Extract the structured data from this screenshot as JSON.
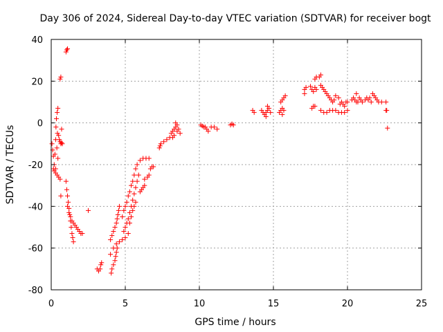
{
  "chart_data": {
    "type": "scatter",
    "title": "Day 306 of 2024, Sidereal Day-to-day VTEC variation (SDTVAR) for receiver bogt",
    "xlabel": "GPS time / hours",
    "ylabel": "SDTVAR / TECUs",
    "xlim": [
      0,
      25
    ],
    "ylim": [
      -80,
      40
    ],
    "x_ticks": [
      0,
      5,
      10,
      15,
      20,
      25
    ],
    "y_ticks": [
      -80,
      -60,
      -40,
      -20,
      0,
      20,
      40
    ],
    "x_tick_labels": [
      "0",
      "5",
      "10",
      "15",
      "20",
      "25"
    ],
    "y_tick_labels": [
      "-80",
      "-60",
      "-40",
      "-20",
      "0",
      "20",
      "40"
    ],
    "grid": true,
    "marker": "+",
    "marker_color": "#ff0000",
    "series": [
      {
        "name": "SDTVAR",
        "points": [
          [
            0.05,
            -10
          ],
          [
            0.1,
            -13
          ],
          [
            0.15,
            -16
          ],
          [
            0.2,
            -20
          ],
          [
            0.25,
            -15
          ],
          [
            0.3,
            -8
          ],
          [
            0.32,
            -2
          ],
          [
            0.35,
            2
          ],
          [
            0.4,
            5
          ],
          [
            0.45,
            7
          ],
          [
            0.42,
            -5
          ],
          [
            0.38,
            -12
          ],
          [
            0.45,
            -17
          ],
          [
            0.3,
            -22
          ],
          [
            0.15,
            -22
          ],
          [
            0.2,
            -23
          ],
          [
            0.3,
            -24
          ],
          [
            0.4,
            -25
          ],
          [
            0.5,
            -26
          ],
          [
            0.6,
            -27
          ],
          [
            0.5,
            -6
          ],
          [
            0.55,
            -8
          ],
          [
            0.6,
            -9
          ],
          [
            0.65,
            -10
          ],
          [
            0.7,
            -9.5
          ],
          [
            0.75,
            -10
          ],
          [
            0.6,
            21
          ],
          [
            0.65,
            22
          ],
          [
            1.0,
            34
          ],
          [
            1.05,
            35
          ],
          [
            1.1,
            35.5
          ],
          [
            0.7,
            -3
          ],
          [
            0.65,
            -35
          ],
          [
            1.0,
            -28
          ],
          [
            1.05,
            -32
          ],
          [
            1.1,
            -35
          ],
          [
            1.15,
            -38
          ],
          [
            1.2,
            -41
          ],
          [
            1.25,
            -44
          ],
          [
            1.3,
            -47
          ],
          [
            1.35,
            -50
          ],
          [
            1.4,
            -53
          ],
          [
            1.45,
            -55
          ],
          [
            1.5,
            -57
          ],
          [
            1.1,
            -40
          ],
          [
            1.2,
            -43
          ],
          [
            1.3,
            -45
          ],
          [
            1.4,
            -47
          ],
          [
            1.5,
            -48
          ],
          [
            1.6,
            -49
          ],
          [
            1.7,
            -50
          ],
          [
            1.8,
            -51
          ],
          [
            1.9,
            -52
          ],
          [
            2.0,
            -53
          ],
          [
            2.1,
            -53
          ],
          [
            2.5,
            -42
          ],
          [
            3.1,
            -70
          ],
          [
            3.2,
            -71
          ],
          [
            3.3,
            -70
          ],
          [
            3.35,
            -68
          ],
          [
            3.4,
            -67
          ],
          [
            4.0,
            -56
          ],
          [
            4.1,
            -54
          ],
          [
            4.2,
            -52
          ],
          [
            4.3,
            -50
          ],
          [
            4.4,
            -48
          ],
          [
            4.45,
            -46
          ],
          [
            4.5,
            -44
          ],
          [
            4.55,
            -42
          ],
          [
            4.6,
            -40
          ],
          [
            4.05,
            -72
          ],
          [
            4.1,
            -70
          ],
          [
            4.2,
            -68
          ],
          [
            4.3,
            -66
          ],
          [
            4.35,
            -64
          ],
          [
            4.4,
            -62
          ],
          [
            4.45,
            -60
          ],
          [
            4.0,
            -63
          ],
          [
            4.2,
            -60
          ],
          [
            4.4,
            -58
          ],
          [
            4.6,
            -57
          ],
          [
            4.8,
            -56
          ],
          [
            5.0,
            -55
          ],
          [
            5.2,
            -53
          ],
          [
            4.8,
            -45
          ],
          [
            4.9,
            -42
          ],
          [
            5.0,
            -40
          ],
          [
            5.1,
            -38
          ],
          [
            5.2,
            -35
          ],
          [
            5.3,
            -33
          ],
          [
            5.4,
            -30
          ],
          [
            5.5,
            -28
          ],
          [
            5.6,
            -25
          ],
          [
            5.7,
            -22
          ],
          [
            5.8,
            -20
          ],
          [
            4.9,
            -52
          ],
          [
            5.0,
            -50
          ],
          [
            5.1,
            -48
          ],
          [
            5.2,
            -46
          ],
          [
            5.3,
            -43
          ],
          [
            5.4,
            -40
          ],
          [
            5.5,
            -37
          ],
          [
            5.6,
            -34
          ],
          [
            5.7,
            -31
          ],
          [
            5.8,
            -28
          ],
          [
            5.9,
            -25
          ],
          [
            5.3,
            -48
          ],
          [
            5.4,
            -45
          ],
          [
            5.5,
            -42
          ],
          [
            5.6,
            -40
          ],
          [
            5.7,
            -38
          ],
          [
            6.0,
            -33
          ],
          [
            6.1,
            -32
          ],
          [
            6.2,
            -31
          ],
          [
            6.3,
            -30
          ],
          [
            6.0,
            -18
          ],
          [
            6.2,
            -17
          ],
          [
            6.4,
            -17
          ],
          [
            6.6,
            -17
          ],
          [
            6.3,
            -27
          ],
          [
            6.5,
            -26
          ],
          [
            6.6,
            -25
          ],
          [
            6.7,
            -22
          ],
          [
            6.8,
            -21
          ],
          [
            6.9,
            -21
          ],
          [
            7.3,
            -12
          ],
          [
            7.35,
            -11
          ],
          [
            7.4,
            -10
          ],
          [
            7.6,
            -9
          ],
          [
            7.8,
            -8
          ],
          [
            8.0,
            -7
          ],
          [
            8.1,
            -5
          ],
          [
            8.2,
            -4
          ],
          [
            8.3,
            -3
          ],
          [
            8.4,
            -2
          ],
          [
            8.5,
            -1
          ],
          [
            8.6,
            -3
          ],
          [
            8.7,
            -5
          ],
          [
            8.2,
            -7
          ],
          [
            8.3,
            -6
          ],
          [
            8.4,
            0
          ],
          [
            8.5,
            -4
          ],
          [
            10.1,
            -1
          ],
          [
            10.2,
            -1.5
          ],
          [
            10.3,
            -2
          ],
          [
            10.4,
            -2
          ],
          [
            10.5,
            -3
          ],
          [
            10.6,
            -4
          ],
          [
            10.8,
            -2
          ],
          [
            11.0,
            -2
          ],
          [
            11.2,
            -3
          ],
          [
            12.1,
            -1
          ],
          [
            12.2,
            -0.5
          ],
          [
            12.3,
            -1
          ],
          [
            13.6,
            6
          ],
          [
            13.7,
            5
          ],
          [
            14.2,
            6
          ],
          [
            14.3,
            5
          ],
          [
            14.4,
            4
          ],
          [
            14.5,
            5
          ],
          [
            14.6,
            6
          ],
          [
            14.7,
            7
          ],
          [
            14.8,
            5
          ],
          [
            14.5,
            3
          ],
          [
            14.6,
            8
          ],
          [
            15.4,
            5
          ],
          [
            15.5,
            6
          ],
          [
            15.6,
            7
          ],
          [
            15.7,
            6
          ],
          [
            15.5,
            10
          ],
          [
            15.6,
            11
          ],
          [
            15.7,
            12
          ],
          [
            15.8,
            13
          ],
          [
            15.6,
            4
          ],
          [
            17.1,
            14
          ],
          [
            17.1,
            16
          ],
          [
            17.2,
            17
          ],
          [
            17.6,
            7
          ],
          [
            17.7,
            8
          ],
          [
            17.8,
            8
          ],
          [
            17.6,
            16
          ],
          [
            17.7,
            15
          ],
          [
            17.8,
            17
          ],
          [
            17.9,
            16
          ],
          [
            17.5,
            17.5
          ],
          [
            18.1,
            22
          ],
          [
            18.2,
            23
          ],
          [
            17.8,
            21
          ],
          [
            17.9,
            22
          ],
          [
            18.2,
            18
          ],
          [
            18.3,
            17
          ],
          [
            18.4,
            16
          ],
          [
            18.5,
            15
          ],
          [
            18.6,
            14
          ],
          [
            18.7,
            13
          ],
          [
            18.8,
            12
          ],
          [
            18.9,
            11
          ],
          [
            19.0,
            10
          ],
          [
            19.1,
            11
          ],
          [
            19.2,
            13
          ],
          [
            18.2,
            6
          ],
          [
            18.4,
            5
          ],
          [
            18.6,
            5
          ],
          [
            18.8,
            6
          ],
          [
            19.0,
            6
          ],
          [
            19.2,
            6
          ],
          [
            19.4,
            5
          ],
          [
            19.6,
            5
          ],
          [
            19.8,
            5
          ],
          [
            20.0,
            6
          ],
          [
            19.5,
            9
          ],
          [
            19.6,
            10
          ],
          [
            19.7,
            9
          ],
          [
            19.8,
            8
          ],
          [
            19.9,
            10
          ],
          [
            20.0,
            10
          ],
          [
            19.4,
            12
          ],
          [
            20.3,
            11
          ],
          [
            20.4,
            12
          ],
          [
            20.5,
            11
          ],
          [
            20.6,
            10
          ],
          [
            20.7,
            10
          ],
          [
            20.8,
            12
          ],
          [
            20.9,
            11
          ],
          [
            21.0,
            10
          ],
          [
            21.2,
            11
          ],
          [
            21.3,
            12
          ],
          [
            21.4,
            11
          ],
          [
            21.6,
            10
          ],
          [
            20.6,
            14
          ],
          [
            21.5,
            12
          ],
          [
            21.7,
            14
          ],
          [
            21.8,
            13
          ],
          [
            21.9,
            12
          ],
          [
            22.0,
            11
          ],
          [
            22.1,
            10
          ],
          [
            22.3,
            10
          ],
          [
            22.6,
            10
          ],
          [
            22.6,
            6
          ],
          [
            22.65,
            6
          ],
          [
            22.7,
            -2.5
          ]
        ]
      }
    ]
  }
}
